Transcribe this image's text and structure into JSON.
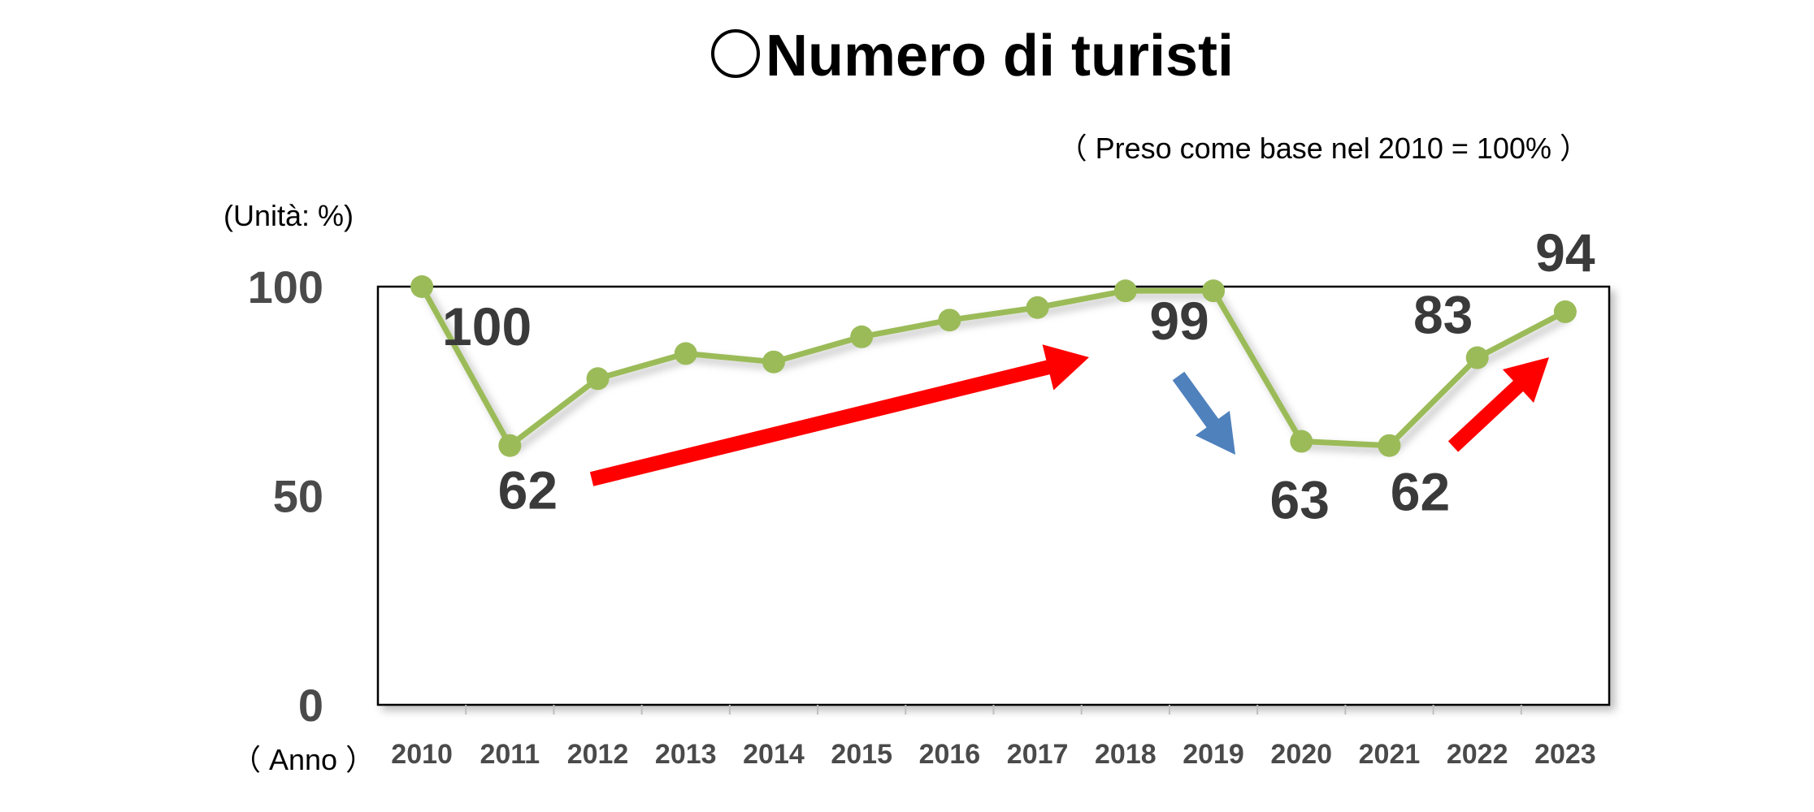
{
  "chart_data": {
    "type": "line",
    "title": "Numero di turisti",
    "subtitle": "（ Preso come base nel 2010 = 100% ）",
    "ylabel": "(Unità: %)",
    "xlabel": "（ Anno ）",
    "ylim": [
      0,
      100
    ],
    "yticks": [
      "0",
      "50",
      "100"
    ],
    "categories": [
      "2010",
      "2011",
      "2012",
      "2013",
      "2014",
      "2015",
      "2016",
      "2017",
      "2018",
      "2019",
      "2020",
      "2021",
      "2022",
      "2023"
    ],
    "series": [
      {
        "values": [
          100,
          62,
          78,
          84,
          82,
          88,
          92,
          95,
          99,
          99,
          63,
          62,
          83,
          94
        ]
      }
    ],
    "data_labels": [
      {
        "category": "2010",
        "text": "100"
      },
      {
        "category": "2011",
        "text": "62"
      },
      {
        "category": "2019",
        "text": "99"
      },
      {
        "category": "2020",
        "text": "63"
      },
      {
        "category": "2021",
        "text": "62"
      },
      {
        "category": "2022",
        "text": "83"
      },
      {
        "category": "2023",
        "text": "94"
      }
    ],
    "trend_arrows": [
      {
        "direction": "up",
        "from": "2012",
        "to": "2018",
        "color": "#ff0000"
      },
      {
        "direction": "down",
        "from": "2019",
        "to": "2020",
        "color": "#4f81bd"
      },
      {
        "direction": "up",
        "from": "2022",
        "to": "2023",
        "color": "#ff0000"
      }
    ],
    "colors": {
      "line": "#9bbb59",
      "axis": "#000000",
      "tick_text": "#4a4a4a",
      "label_text": "#3a3a3a"
    },
    "grid": false
  }
}
